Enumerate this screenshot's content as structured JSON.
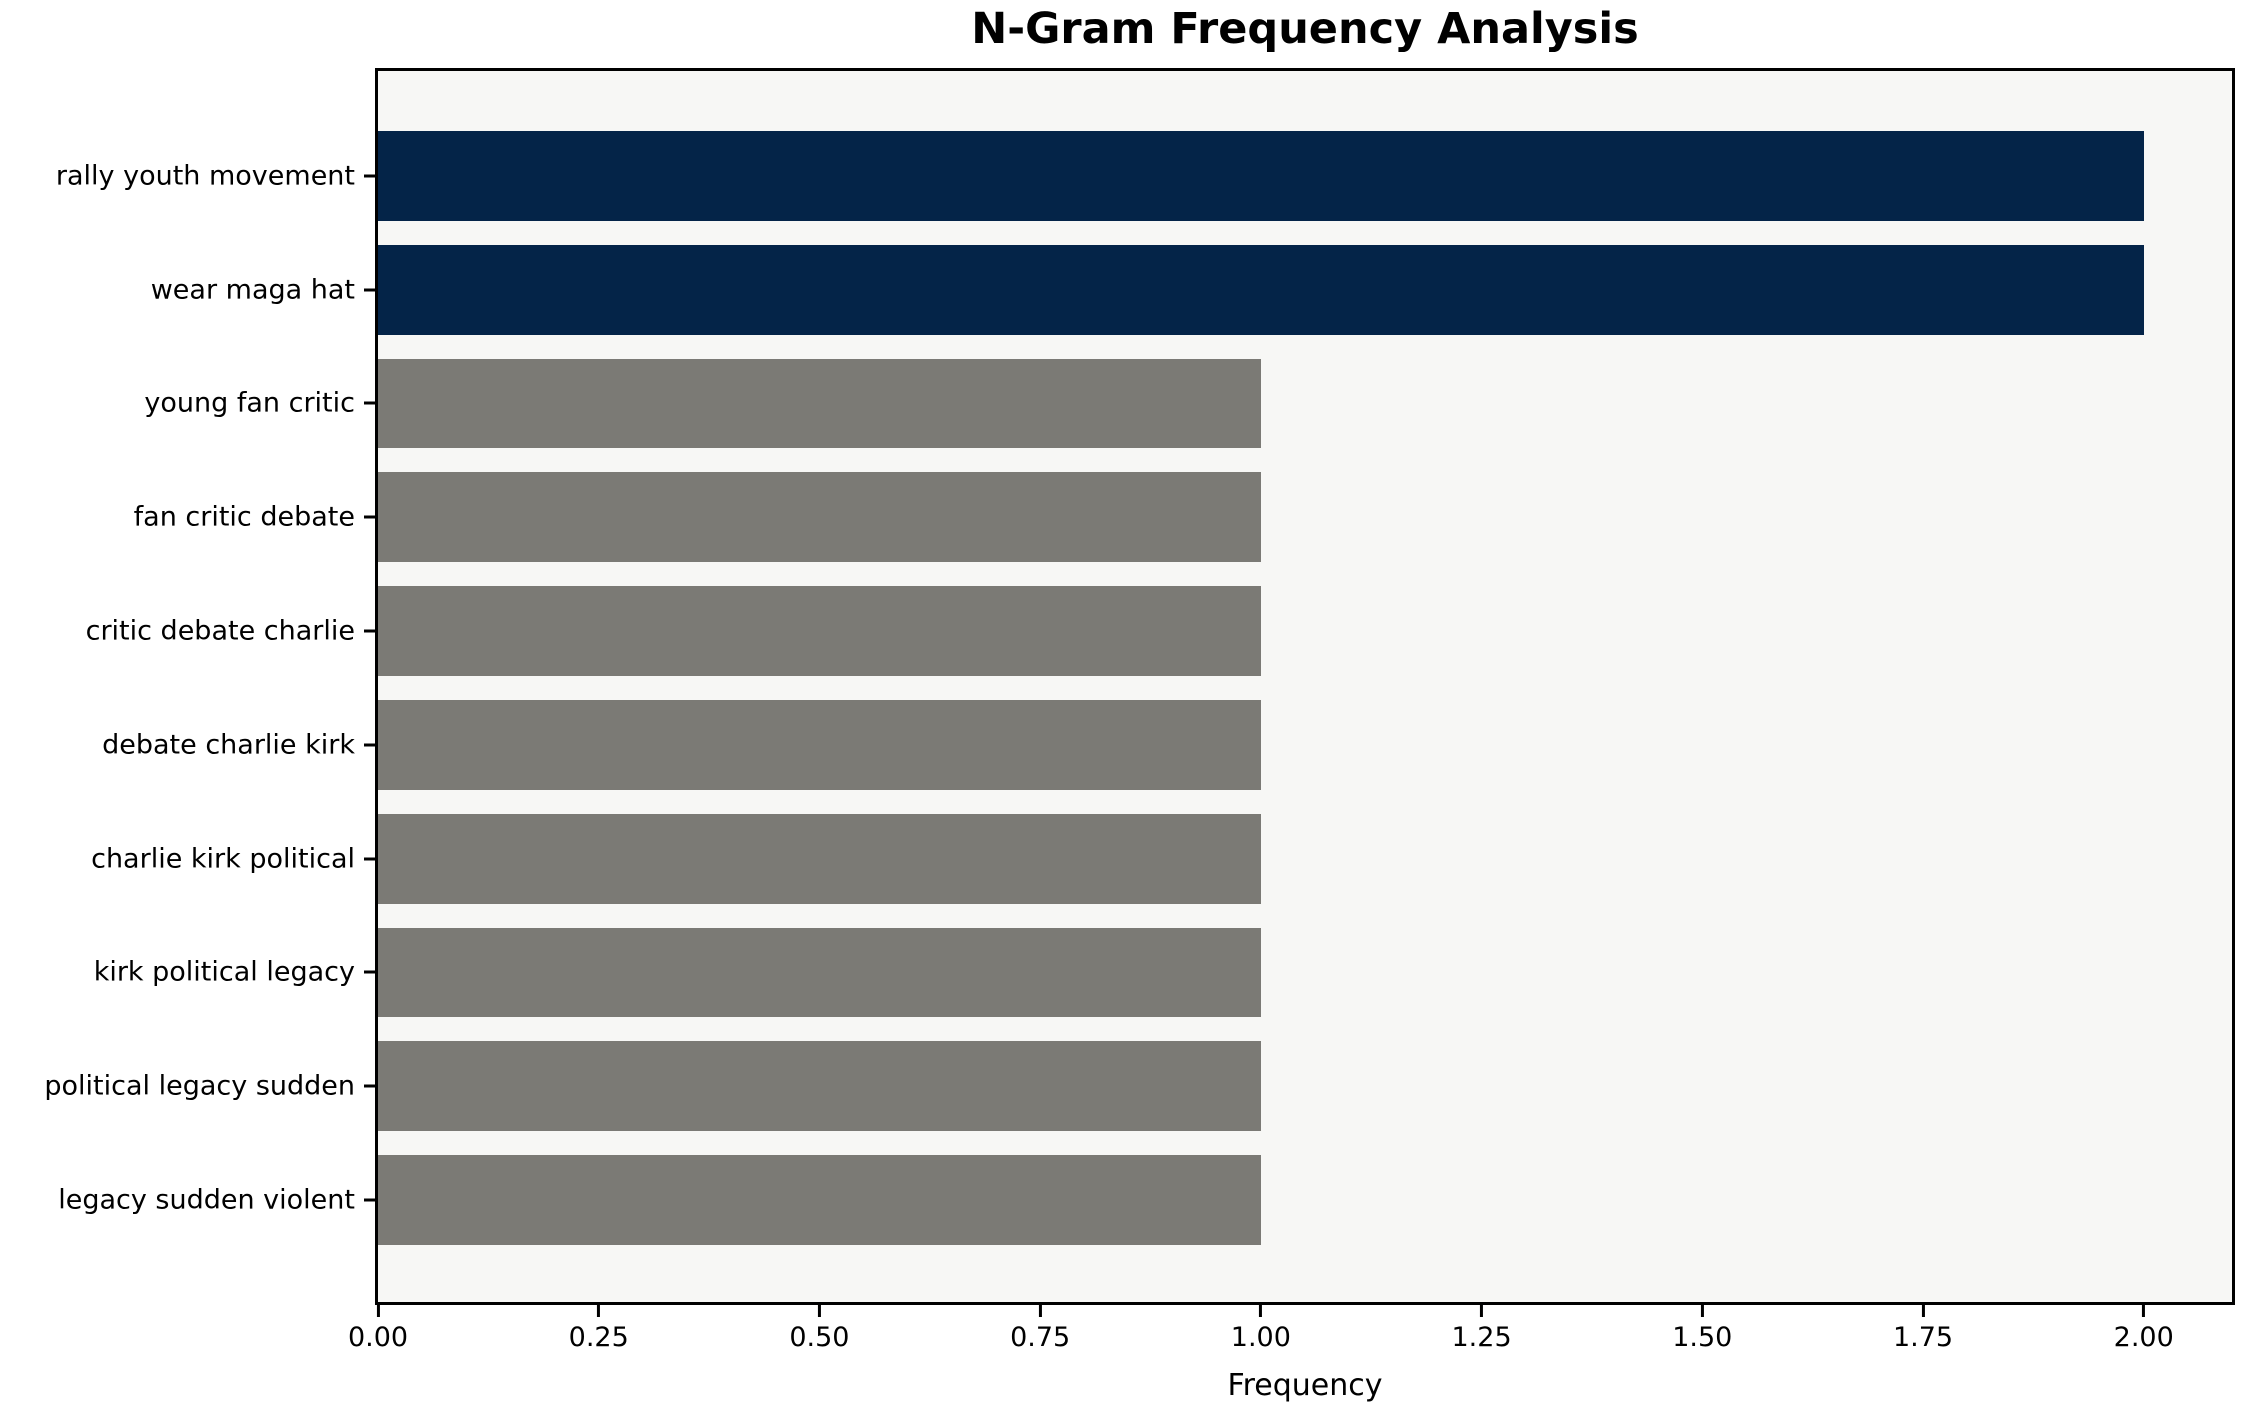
{
  "chart_data": {
    "type": "bar",
    "orientation": "horizontal",
    "title": "N-Gram Frequency Analysis",
    "xlabel": "Frequency",
    "ylabel": "",
    "categories": [
      "rally youth movement",
      "wear maga hat",
      "young fan critic",
      "fan critic debate",
      "critic debate charlie",
      "debate charlie kirk",
      "charlie kirk political",
      "kirk political legacy",
      "political legacy sudden",
      "legacy sudden violent"
    ],
    "values": [
      2,
      2,
      1,
      1,
      1,
      1,
      1,
      1,
      1,
      1
    ],
    "bar_colors": [
      "#042448",
      "#042448",
      "#7b7a75",
      "#7b7a75",
      "#7b7a75",
      "#7b7a75",
      "#7b7a75",
      "#7b7a75",
      "#7b7a75",
      "#7b7a75"
    ],
    "xlim": [
      0,
      2.1
    ],
    "xticks": [
      {
        "value": 0.0,
        "label": "0.00"
      },
      {
        "value": 0.25,
        "label": "0.25"
      },
      {
        "value": 0.5,
        "label": "0.50"
      },
      {
        "value": 0.75,
        "label": "0.75"
      },
      {
        "value": 1.0,
        "label": "1.00"
      },
      {
        "value": 1.25,
        "label": "1.25"
      },
      {
        "value": 1.5,
        "label": "1.50"
      },
      {
        "value": 1.75,
        "label": "1.75"
      },
      {
        "value": 2.0,
        "label": "2.00"
      }
    ],
    "grid": false,
    "legend": "none",
    "plot_background": "#f7f7f5",
    "colors": {
      "highlight": "#042448",
      "muted": "#7b7a75",
      "spine": "#000000",
      "text": "#000000"
    }
  }
}
